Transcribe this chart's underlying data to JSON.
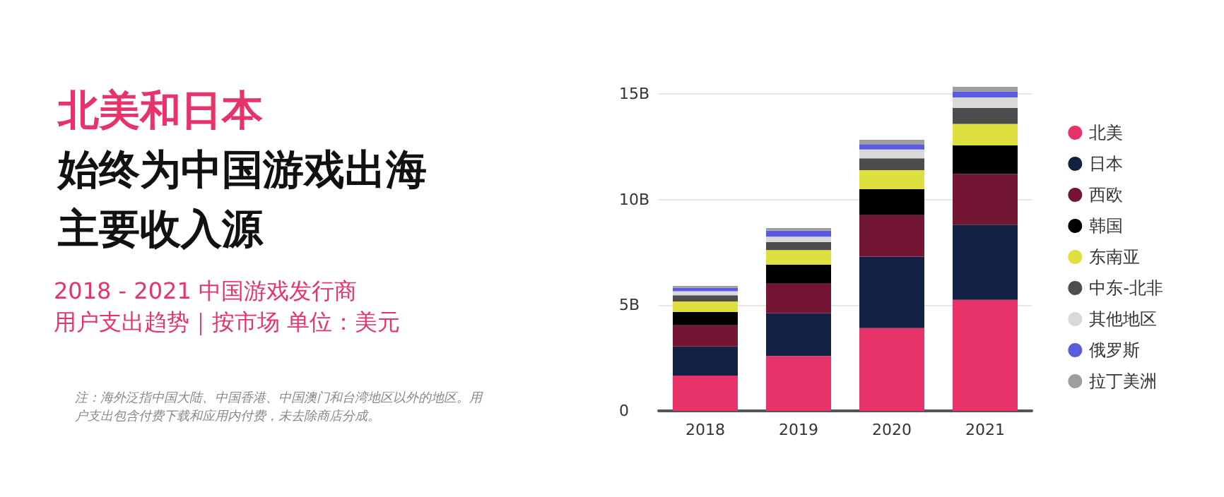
{
  "chart_data": {
    "type": "bar",
    "stacked": true,
    "title": "北美和日本",
    "subtitle": "始终为中国游戏出海主要收入源",
    "categories": [
      "2018",
      "2019",
      "2020",
      "2021"
    ],
    "series": [
      {
        "name": "北美",
        "color": "#e8336a",
        "values": [
          1.67,
          2.6,
          3.92,
          5.25
        ]
      },
      {
        "name": "日本",
        "color": "#132244",
        "values": [
          1.38,
          2.02,
          3.38,
          3.56
        ]
      },
      {
        "name": "西欧",
        "color": "#731634",
        "values": [
          1.0,
          1.4,
          1.96,
          2.4
        ]
      },
      {
        "name": "韩国",
        "color": "#000000",
        "values": [
          0.63,
          0.9,
          1.23,
          1.35
        ]
      },
      {
        "name": "东南亚",
        "color": "#dde03f",
        "values": [
          0.5,
          0.69,
          0.9,
          1.02
        ]
      },
      {
        "name": "中东-北非",
        "color": "#4d4d4d",
        "values": [
          0.29,
          0.38,
          0.56,
          0.75
        ]
      },
      {
        "name": "其他地区",
        "color": "#d9d9d9",
        "values": [
          0.19,
          0.25,
          0.42,
          0.5
        ]
      },
      {
        "name": "俄罗斯",
        "color": "#5b5be0",
        "values": [
          0.17,
          0.29,
          0.25,
          0.29
        ]
      },
      {
        "name": "拉丁美洲",
        "color": "#9e9e9e",
        "values": [
          0.08,
          0.12,
          0.21,
          0.21
        ]
      }
    ],
    "ylim": [
      0,
      15.5
    ],
    "yticks": [
      0,
      {
        "value": 5,
        "label": "5B"
      },
      {
        "value": 10,
        "label": "10B"
      },
      {
        "value": 15,
        "label": "15B"
      }
    ],
    "grid": "y",
    "legend": "right",
    "annotations": [
      "2018 - 2021 中国游戏发行商",
      "用户支出趋势｜按市场 单位：美元",
      "注：海外泛指中国大陆、中国香港、中国澳门和台湾地区以外的地区。用户支出包含付费下载和应用内付费，未去除商店分成。"
    ]
  }
}
